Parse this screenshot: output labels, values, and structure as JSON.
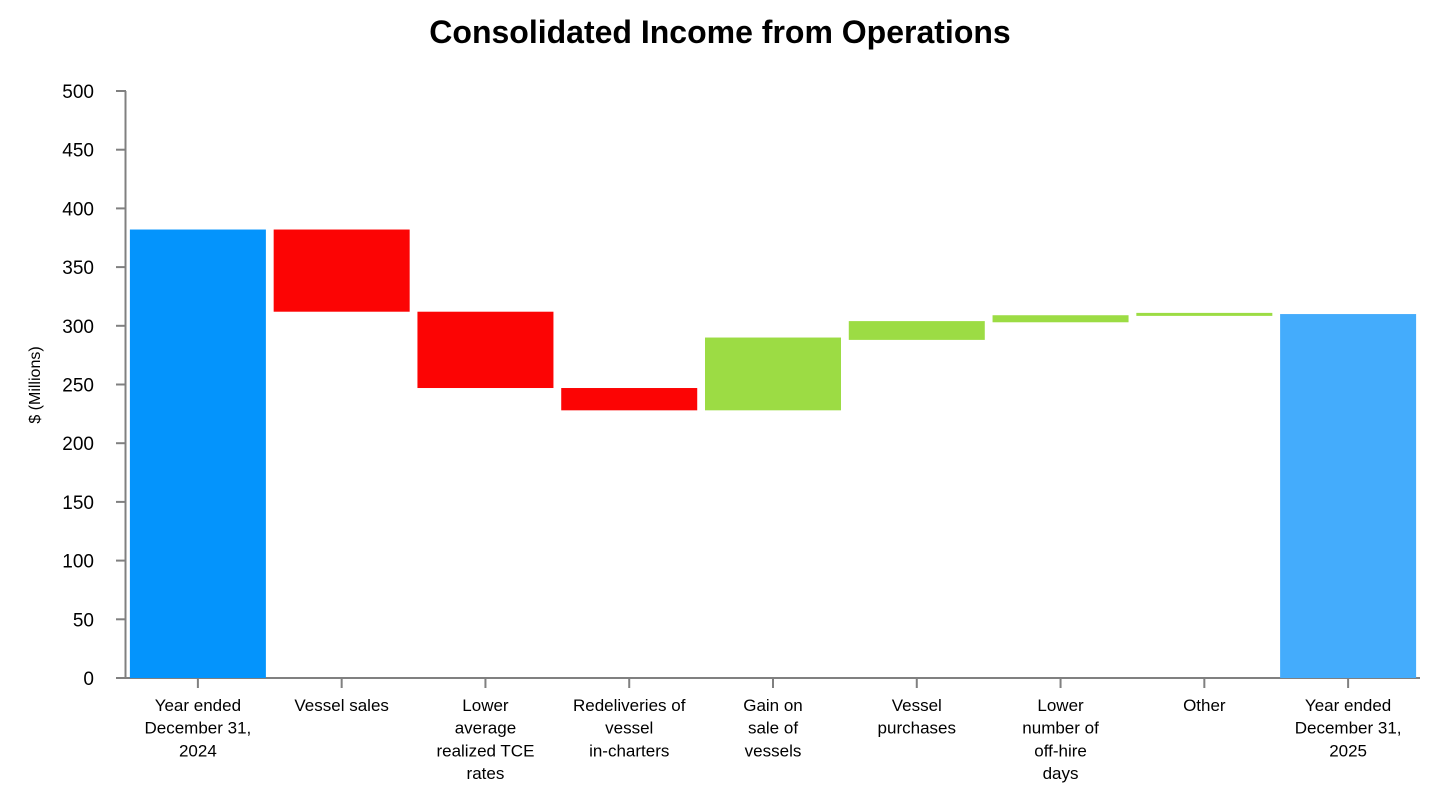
{
  "chart_data": {
    "type": "bar",
    "subtype": "waterfall",
    "title": "Consolidated Income from Operations",
    "xlabel": "",
    "ylabel": "$ (Millions)",
    "ylim": [
      0,
      500
    ],
    "yticks": [
      0,
      50,
      100,
      150,
      200,
      250,
      300,
      350,
      400,
      450,
      500
    ],
    "grid": false,
    "legend": "none",
    "categories": [
      [
        "Year ended",
        "December 31,",
        "2024"
      ],
      [
        "Vessel sales"
      ],
      [
        "Lower",
        "average",
        "realized TCE",
        "rates"
      ],
      [
        "Redeliveries of",
        "vessel",
        "in-charters"
      ],
      [
        "Gain on",
        "sale of",
        "vessels"
      ],
      [
        "Vessel",
        "purchases"
      ],
      [
        "Lower",
        "number of",
        "off-hire",
        "days"
      ],
      [
        "Other"
      ],
      [
        "Year ended",
        "December 31,",
        "2025"
      ]
    ],
    "bars": [
      {
        "kind": "total",
        "start": 0,
        "end": 382
      },
      {
        "kind": "decrease",
        "start": 382,
        "end": 312
      },
      {
        "kind": "decrease",
        "start": 312,
        "end": 247
      },
      {
        "kind": "decrease",
        "start": 247,
        "end": 228
      },
      {
        "kind": "increase",
        "start": 228,
        "end": 290
      },
      {
        "kind": "increase",
        "start": 288,
        "end": 304
      },
      {
        "kind": "increase",
        "start": 303,
        "end": 309
      },
      {
        "kind": "increase",
        "start": 309,
        "end": 311
      },
      {
        "kind": "total",
        "start": 0,
        "end": 310
      }
    ],
    "colors": {
      "total_start": "#0494fc",
      "total_end": "#44acfc",
      "decrease": "#fc0404",
      "increase": "#9cdc44",
      "axis": "#808080"
    }
  }
}
